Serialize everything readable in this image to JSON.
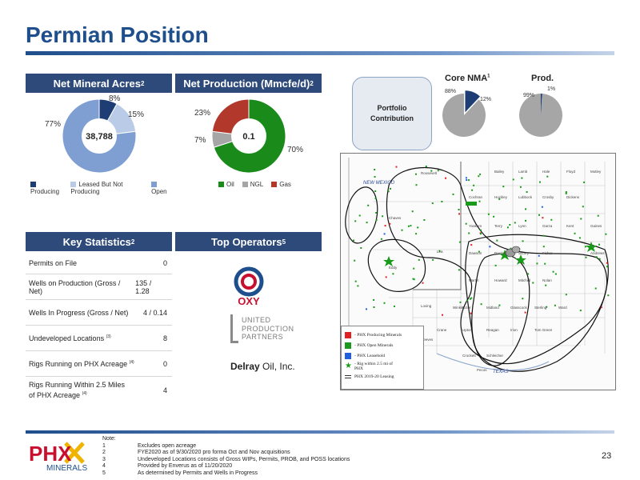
{
  "title": "Permian Position",
  "net_mineral_acres": {
    "header": "Net Mineral Acres",
    "header_sup": "2",
    "center_label": "38,788",
    "slices": [
      {
        "label": "Producing",
        "pct": 8,
        "pct_label": "8%",
        "color": "#1f3d75"
      },
      {
        "label": "Leased But Not Producing",
        "pct": 15,
        "pct_label": "15%",
        "color": "#b9cbe6"
      },
      {
        "label": "Open",
        "pct": 77,
        "pct_label": "77%",
        "color": "#7f9fd3"
      }
    ]
  },
  "net_production": {
    "header": "Net Production (Mmcfe/d)",
    "header_sup": "2",
    "center_label": "0.1",
    "slices": [
      {
        "label": "Oil",
        "pct": 70,
        "pct_label": "70%",
        "color": "#1a8a1a"
      },
      {
        "label": "NGL",
        "pct": 7,
        "pct_label": "7%",
        "color": "#a6a6a6"
      },
      {
        "label": "Gas",
        "pct": 23,
        "pct_label": "23%",
        "color": "#b3382c"
      }
    ]
  },
  "portfolio": {
    "label_line1": "Portfolio",
    "label_line2": "Contribution",
    "core_title": "Core NMA",
    "core_sup": "1",
    "core_big": "88%",
    "core_small": "12%",
    "core_small_pct": 12,
    "prod_title": "Prod.",
    "prod_big": "99%",
    "prod_small": "1%",
    "prod_small_pct": 1,
    "grey": "#a6a6a6",
    "accent": "#1f3d75"
  },
  "key_statistics": {
    "header": "Key Statistics",
    "header_sup": "2",
    "rows": [
      {
        "label": "Permits on File",
        "sup": "",
        "value": "0"
      },
      {
        "label": "Wells on Production (Gross / Net)",
        "sup": "",
        "value": "135 / 1.28"
      },
      {
        "label": "Wells In Progress (Gross / Net)",
        "sup": "",
        "value": "4 / 0.14"
      },
      {
        "label": "Undeveloped Locations",
        "sup": "(3)",
        "value": "8"
      },
      {
        "label": "Rigs Running on PHX Acreage",
        "sup": "(4)",
        "value": "0"
      },
      {
        "label": "Rigs Running Within 2.5 Miles of PHX Acreage",
        "sup": "(4)",
        "value": "4"
      }
    ]
  },
  "top_operators": {
    "header": "Top Operators",
    "header_sup": "5",
    "oxy": "OXY",
    "upp_lines": [
      "UNITED",
      "PRODUCTION",
      "PARTNERS"
    ],
    "delray_bold": "Delray",
    "delray_rest": " Oil, Inc."
  },
  "map": {
    "state_labels": [
      "NEW MEXICO",
      "TEXAS"
    ],
    "counties": [
      "Roosevelt",
      "Bailey",
      "Lamb",
      "Hale",
      "Floyd",
      "Motley",
      "Cochran",
      "Hockley",
      "Lubbock",
      "Crosby",
      "Dickens",
      "Chaves",
      "Yoakum",
      "Terry",
      "Lynn",
      "Garza",
      "Kent",
      "Gaines",
      "Dawson",
      "Borden",
      "Scurry",
      "Fisher",
      "Lea",
      "Andrews",
      "Martin",
      "Howard",
      "Mitchell",
      "Nolan",
      "Eddy",
      "Loving",
      "Winkler",
      "Ector",
      "Midland",
      "Glasscock",
      "Sterling",
      "Ward",
      "Crane",
      "Upton",
      "Reagan",
      "Irion",
      "Tom Green",
      "Reeves",
      "Pecos",
      "Crockett",
      "Schleicher"
    ],
    "legend": [
      {
        "label": "- PHX Producing Minerals",
        "color": "#e02020",
        "type": "square"
      },
      {
        "label": "- PHX Open Minerals",
        "color": "#1a9a1a",
        "type": "square"
      },
      {
        "label": "- PHX Leasehold",
        "color": "#2060e0",
        "type": "square"
      },
      {
        "label": "- Rig within 2.5 mi of PHX",
        "color": "#1a9a1a",
        "type": "star"
      },
      {
        "label": "PHX 2019-20 Leasing",
        "color": "#333333",
        "type": "lines"
      }
    ]
  },
  "footer": {
    "logo_text_top": "PHX",
    "logo_text_bottom": "MINERALS",
    "note_title": "Note:",
    "notes": [
      {
        "num": "1",
        "text": "Excludes open acreage"
      },
      {
        "num": "2",
        "text": "FYE2020 as of 9/30/2020 pro forma Oct and Nov acquisitions"
      },
      {
        "num": "3",
        "text": "Undeveloped Locations consists of Gross WIPs, Permits, PROB, and POSS locations"
      },
      {
        "num": "4",
        "text": "Provided by Enverus as of 11/20/2020"
      },
      {
        "num": "5",
        "text": "As determined by Permits and Wells in Progress"
      }
    ],
    "page_number": "23"
  }
}
